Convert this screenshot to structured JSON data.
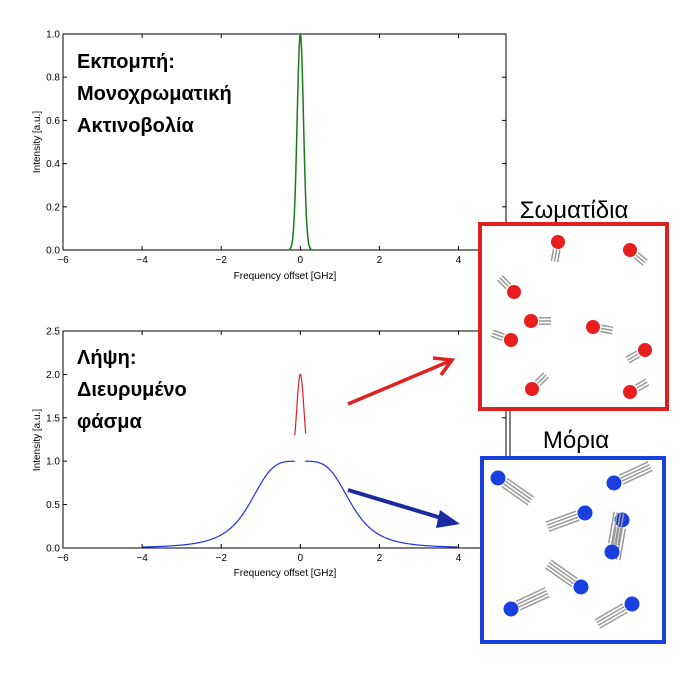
{
  "top_panel": {
    "annotation": [
      "Εκπομπή:",
      "Μονοχρωματική",
      "Ακτινοβολία"
    ]
  },
  "bottom_panel": {
    "annotation": [
      "Λήψη:",
      "Διευρυμένο",
      "φάσμα"
    ]
  },
  "particles_box": {
    "title": "Σωματίδια",
    "color": "#e02020"
  },
  "molecules_box": {
    "title": "Μόρια",
    "color": "#1a3fe0"
  },
  "chart_data": [
    {
      "type": "line",
      "title": "",
      "xlabel": "Frequency offset [GHz]",
      "ylabel": "Intensity [a.u.]",
      "xlim": [
        -6,
        5.2
      ],
      "ylim": [
        0,
        1
      ],
      "xticks": [
        "−6",
        "−4",
        "−2",
        "0",
        "2",
        "4"
      ],
      "yticks": [
        "0.0",
        "0.2",
        "0.4",
        "0.6",
        "0.8",
        "1.0"
      ],
      "grid": false,
      "series": [
        {
          "color": "#1a7a1a",
          "shape": "narrow-line",
          "center": 0,
          "peak": 1.0,
          "width": 0.08
        }
      ]
    },
    {
      "type": "line",
      "title": "",
      "xlabel": "Frequency offset [GHz]",
      "ylabel": "Intensity [a.u.]",
      "xlim": [
        -6,
        5.2
      ],
      "ylim": [
        0,
        2.5
      ],
      "xticks": [
        "−6",
        "−4",
        "−2",
        "0",
        "2",
        "4"
      ],
      "yticks": [
        "0.0",
        "0.5",
        "1.0",
        "1.5",
        "2.0",
        "2.5"
      ],
      "grid": false,
      "series": [
        {
          "color": "#2030e0",
          "shape": "broadened-profile",
          "plateau": 1.0,
          "half_width": 1.3
        },
        {
          "color": "#e02020",
          "shape": "narrow-peak",
          "center": 0,
          "peak": 2.0,
          "width": 0.09
        }
      ]
    }
  ]
}
